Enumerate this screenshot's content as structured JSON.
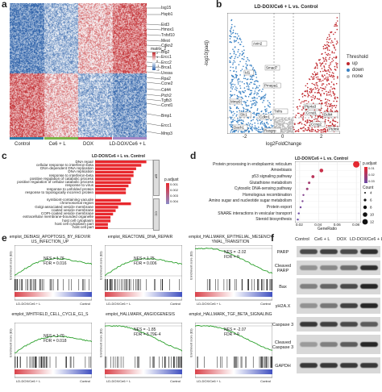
{
  "panels": {
    "a": "a",
    "b": "b",
    "c": "c",
    "d": "d",
    "e": "e",
    "f": "f"
  },
  "heatmap": {
    "groups": [
      "Control",
      "Ce6 + L",
      "DOX",
      "LD-DOX/Ce6 + L"
    ],
    "group_colors": [
      "#2e7ca8",
      "#7ab648",
      "#d4475a",
      "#a586c4"
    ],
    "legend_title": "matrix_2",
    "legend_ticks": [
      "2",
      "1",
      "0",
      "-1",
      "-2"
    ],
    "genes": [
      "Isg15",
      "Hspb1",
      "Eid3",
      "Hmox1",
      "Tnfsf10",
      "Mest",
      "Cdkn2",
      "Btg2",
      "Ercc1",
      "Ercc2",
      "Brca1",
      "Uvssa",
      "Rpa2",
      "Ccne2",
      "Cd44",
      "Ptch2",
      "Tgfb3",
      "Ccnd1",
      "Bmp1",
      "Ercc1",
      "Mmp3"
    ]
  },
  "volcano": {
    "title": "LD-DOX/Ce6 + L vs. Control",
    "xlabel": "log2FoldChange",
    "ylabel": "-log10(padj)",
    "xticks": [
      "-2",
      "0",
      "2"
    ],
    "legend_title": "Threshold",
    "legend_items": [
      {
        "label": "up",
        "color": "#c0282d"
      },
      {
        "label": "down",
        "color": "#3a82c4"
      },
      {
        "label": "none",
        "color": "#bbbbbb"
      }
    ],
    "labels": [
      "Axin2",
      "Id1",
      "Smad7",
      "Pmepa1",
      "Mmp9",
      "Slc1",
      "Dach1",
      "Rasgrp",
      "Cdkn1",
      "Tnfrs",
      "Ccnd1",
      "Ptp4a3",
      "Ddit4",
      "Ptdmk",
      "Ccng2"
    ]
  },
  "go_bar": {
    "title": "LD-DOX/Ce6 + L vs. Control",
    "legend_title": "p.adjust",
    "legend_ticks": [
      "0.001",
      "0.002",
      "0.003",
      "0.004"
    ],
    "groups": [
      {
        "name": "BP",
        "start": 0,
        "end": 10
      },
      {
        "name": "CC",
        "start": 10,
        "end": 19
      }
    ],
    "chart_data": {
      "type": "bar",
      "categories": [
        "DNA repair",
        "cellular response to interferon-beta",
        "DNA-dependent DNA replication",
        "DNA replication",
        "response to interferon-beta",
        "positive regulation of catabolic process",
        "positive regulation of cellular catabolic process",
        "response to virus",
        "response to unfolded protein",
        "response to topologically incorrect protein",
        "symbiont-containing vacuole",
        "chromosomal region",
        "Golgi-associated vesicle membrane",
        "coated vesicle membrane",
        "COPI-coated vesicle membrane",
        "extracellular membrane-bounded organelle",
        "host cell cytoplasm",
        "host cell cytoplasm part",
        "host cell part"
      ],
      "values": [
        20,
        18,
        16,
        15,
        15,
        14,
        14,
        13,
        12,
        12,
        10,
        14,
        9,
        8,
        7,
        6,
        6,
        5,
        5
      ]
    }
  },
  "kegg_dot": {
    "title": "LD-DOX/Ce6 + L vs. Control",
    "xlabel": "GeneRatio",
    "xticks": [
      "0.02",
      "0.04",
      "0.06",
      "0.08"
    ],
    "legend_title": "p.adjust",
    "legend_ticks": [
      "0.01",
      "0.02",
      "0.03"
    ],
    "count_title": "Count",
    "count_ticks": [
      "4",
      "6",
      "8",
      "10",
      "12"
    ],
    "chart_data": {
      "type": "scatter",
      "categories": [
        "Protein processing in endoplasmic reticulum",
        "Amoebiasis",
        "p53 signaling pathway",
        "Glutathione metabolism",
        "Cytosolic DNA-sensing pathway",
        "Homologous recombination",
        "Amino sugar and nucleotide sugar metabolism",
        "Protein export",
        "SNARE interactions in vesicular transport",
        "Steroid biosynthesis"
      ],
      "x": [
        0.08,
        0.043,
        0.034,
        0.03,
        0.028,
        0.024,
        0.023,
        0.021,
        0.019,
        0.018
      ],
      "count": [
        12,
        7,
        6,
        5,
        5,
        4,
        4,
        4,
        4,
        4
      ],
      "padj": [
        0.001,
        0.008,
        0.012,
        0.018,
        0.02,
        0.026,
        0.028,
        0.03,
        0.032,
        0.033
      ],
      "xlim": [
        0.015,
        0.085
      ]
    }
  },
  "gsea": {
    "ylabel": "Enrichment score (ES)",
    "xlabel_left": "LD-DOX/Ce6 + L",
    "xlabel_right": "Control",
    "plots": [
      {
        "title": "emplot_DEBIASI_APOPTOSIS_BY_REOVIRUS_INFECTION_UP",
        "nes": "NES = 1.76",
        "fdr": "FDR = 0.016",
        "positive": true
      },
      {
        "title": "emplot_REACTOME_DNA_REPAIR",
        "nes": "NES = 1.75",
        "fdr": "FDR = 0.006",
        "positive": true
      },
      {
        "title": "emplot_HALLMARK_EPITHELIAL_MESENCHYMAL_TRANSITION",
        "nes": "NES = -2.02",
        "fdr": "FDR = 0",
        "positive": false
      },
      {
        "title": "emplot_WHITFIELD_CELL_CYCLE_G1_S",
        "nes": "NES = 1.79",
        "fdr": "FDR = 0.018",
        "positive": true
      },
      {
        "title": "emplot_HALLMARK_ANGIOGENESIS",
        "nes": "NES = -1.85",
        "fdr": "FDR = 5.79E-4",
        "positive": false
      },
      {
        "title": "emplot_HALLMARK_TGF_BETA_SIGNALING",
        "nes": "NES = -2.07",
        "fdr": "FDR = 0",
        "positive": false
      }
    ]
  },
  "western": {
    "columns": [
      "Control",
      "Ce6 + L",
      "DOX",
      "LD-DOX/Ce6 + L"
    ],
    "rows": [
      {
        "label": "PARP",
        "intensity": [
          0.7,
          0.75,
          0.7,
          0.85
        ]
      },
      {
        "label": "Cleaved PARP",
        "intensity": [
          0.3,
          0.35,
          0.5,
          0.85
        ]
      },
      {
        "label": "Bax",
        "intensity": [
          0.4,
          0.55,
          0.7,
          0.9
        ]
      },
      {
        "label": "γH2A.X",
        "intensity": [
          0.3,
          0.45,
          0.75,
          0.9
        ]
      },
      {
        "label": "Caspase 3",
        "intensity": [
          0.8,
          0.75,
          0.7,
          0.6
        ]
      },
      {
        "label": "Cleaved Caspase 3",
        "intensity": [
          0.25,
          0.4,
          0.6,
          0.9
        ]
      },
      {
        "label": "GAPDH",
        "intensity": [
          0.8,
          0.8,
          0.8,
          0.8
        ]
      }
    ]
  }
}
